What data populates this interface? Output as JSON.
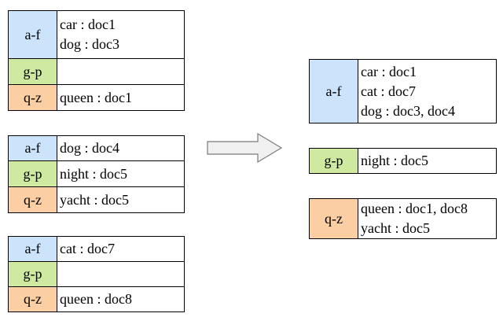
{
  "colors": {
    "af": "#cce4fb",
    "gp": "#cfe9a1",
    "qz": "#fbcfa3",
    "arrow_fill": "#f0f0f0",
    "arrow_stroke": "#7a7a7a"
  },
  "partitions": [
    {
      "rows": [
        {
          "key": "a-f",
          "entries": [
            "car : doc1",
            "dog : doc3"
          ]
        },
        {
          "key": "g-p",
          "entries": []
        },
        {
          "key": "q-z",
          "entries": [
            "queen : doc1"
          ]
        }
      ]
    },
    {
      "rows": [
        {
          "key": "a-f",
          "entries": [
            "dog : doc4"
          ]
        },
        {
          "key": "g-p",
          "entries": [
            "night : doc5"
          ]
        },
        {
          "key": "q-z",
          "entries": [
            "yacht : doc5"
          ]
        }
      ]
    },
    {
      "rows": [
        {
          "key": "a-f",
          "entries": [
            "cat : doc7"
          ]
        },
        {
          "key": "g-p",
          "entries": []
        },
        {
          "key": "q-z",
          "entries": [
            "queen : doc8"
          ]
        }
      ]
    }
  ],
  "merged": [
    {
      "key": "a-f",
      "entries": [
        "car : doc1",
        "cat : doc7",
        "dog : doc3, doc4"
      ]
    },
    {
      "key": "g-p",
      "entries": [
        "night : doc5"
      ]
    },
    {
      "key": "q-z",
      "entries": [
        "queen : doc1, doc8",
        "yacht : doc5"
      ]
    }
  ]
}
